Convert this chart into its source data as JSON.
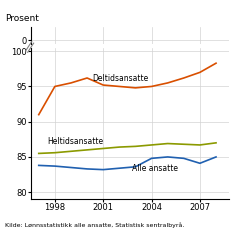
{
  "years": [
    1997,
    1998,
    1999,
    2000,
    2001,
    2002,
    2003,
    2004,
    2005,
    2006,
    2007,
    2008
  ],
  "deltidsansatte": [
    91.0,
    95.0,
    95.5,
    96.2,
    95.2,
    95.0,
    94.8,
    95.0,
    95.5,
    96.2,
    97.0,
    98.3
  ],
  "heltidsansatte": [
    85.5,
    85.6,
    85.8,
    86.0,
    86.2,
    86.4,
    86.5,
    86.7,
    86.9,
    86.8,
    86.7,
    87.0
  ],
  "alle_ansatte": [
    83.8,
    83.7,
    83.5,
    83.3,
    83.2,
    83.4,
    83.6,
    84.8,
    85.0,
    84.8,
    84.1,
    85.0
  ],
  "color_deltid": "#d94f00",
  "color_heltid": "#8b9a00",
  "color_alle": "#2060b0",
  "ylim_bottom": 0,
  "ylim_top": 100,
  "yticks_main": [
    0,
    80,
    85,
    90,
    95,
    100
  ],
  "xticks": [
    1998,
    2001,
    2004,
    2007
  ],
  "label_deltid": "Deltidsansatte",
  "label_heltid": "Heltidsansatte",
  "label_alle": "Alle ansatte",
  "source_text": "Kilde: Lønnsstatistikk alle ansatte, Statistisk sentralbyrå.",
  "ylabel": "Prosent"
}
